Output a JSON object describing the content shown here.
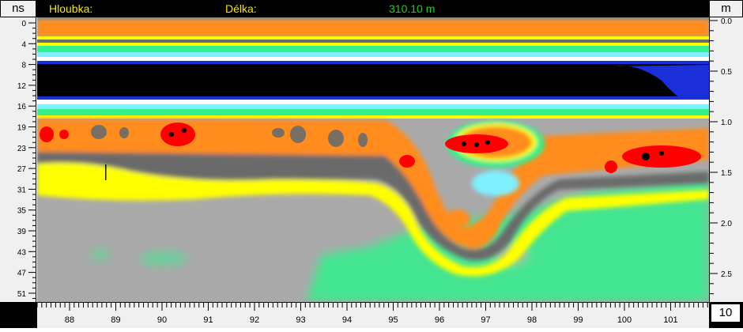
{
  "header": {
    "left_unit": "ns",
    "right_unit": "m",
    "depth_label": "Hloubka:",
    "length_label": "Délka:",
    "length_value": "310.10 m"
  },
  "left_axis_ticks": [
    "0",
    "4",
    "8",
    "12",
    "16",
    "19",
    "23",
    "27",
    "31",
    "35",
    "39",
    "43",
    "47",
    "51"
  ],
  "right_axis_ticks": [
    "0.0",
    "0.5",
    "1.0",
    "1.5",
    "2.0",
    "2.5"
  ],
  "bottom_axis_ticks": [
    "88",
    "89",
    "90",
    "91",
    "92",
    "93",
    "94",
    "95",
    "96",
    "97",
    "98",
    "99",
    "100",
    "101"
  ],
  "scale_value": "10",
  "colors": {
    "background_gray": "#a9a9a9",
    "black_band": "#000000",
    "orange": "#ff8c1a",
    "yellow": "#ffff00",
    "red": "#ff0000",
    "green": "#33f08c",
    "cyan": "#7ff0ff",
    "blue": "#1a2fd9",
    "dark_gray": "#6b6b6b"
  }
}
